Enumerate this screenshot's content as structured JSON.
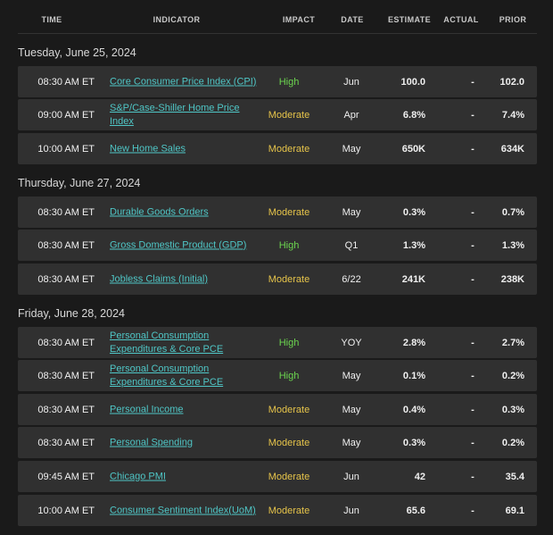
{
  "headers": {
    "time": "TIME",
    "indicator": "INDICATOR",
    "impact": "IMPACT",
    "date": "DATE",
    "estimate": "ESTIMATE",
    "actual": "ACTUAL",
    "prior": "PRIOR"
  },
  "groups": [
    {
      "date_heading": "Tuesday, June 25, 2024",
      "rows": [
        {
          "time": "08:30 AM ET",
          "indicator": "Core Consumer Price Index (CPI)",
          "impact": "High",
          "date": "Jun",
          "estimate": "100.0",
          "actual": "-",
          "prior": "102.0"
        },
        {
          "time": "09:00 AM ET",
          "indicator": "S&P/Case-Shiller Home Price Index",
          "impact": "Moderate",
          "date": "Apr",
          "estimate": "6.8%",
          "actual": "-",
          "prior": "7.4%"
        },
        {
          "time": "10:00 AM ET",
          "indicator": "New Home Sales",
          "impact": "Moderate",
          "date": "May",
          "estimate": "650K",
          "actual": "-",
          "prior": "634K"
        }
      ]
    },
    {
      "date_heading": "Thursday, June 27, 2024",
      "rows": [
        {
          "time": "08:30 AM ET",
          "indicator": "Durable Goods Orders",
          "impact": "Moderate",
          "date": "May",
          "estimate": "0.3%",
          "actual": "-",
          "prior": "0.7%"
        },
        {
          "time": "08:30 AM ET",
          "indicator": "Gross Domestic Product (GDP)",
          "impact": "High",
          "date": "Q1",
          "estimate": "1.3%",
          "actual": "-",
          "prior": "1.3%"
        },
        {
          "time": "08:30 AM ET",
          "indicator": "Jobless Claims (Initial)",
          "impact": "Moderate",
          "date": "6/22",
          "estimate": "241K",
          "actual": "-",
          "prior": "238K"
        }
      ]
    },
    {
      "date_heading": "Friday, June 28, 2024",
      "rows": [
        {
          "time": "08:30 AM ET",
          "indicator": "Personal Consumption Expenditures & Core PCE",
          "impact": "High",
          "date": "YOY",
          "estimate": "2.8%",
          "actual": "-",
          "prior": "2.7%"
        },
        {
          "time": "08:30 AM ET",
          "indicator": "Personal Consumption Expenditures & Core PCE",
          "impact": "High",
          "date": "May",
          "estimate": "0.1%",
          "actual": "-",
          "prior": "0.2%"
        },
        {
          "time": "08:30 AM ET",
          "indicator": "Personal Income",
          "impact": "Moderate",
          "date": "May",
          "estimate": "0.4%",
          "actual": "-",
          "prior": "0.3%"
        },
        {
          "time": "08:30 AM ET",
          "indicator": "Personal Spending",
          "impact": "Moderate",
          "date": "May",
          "estimate": "0.3%",
          "actual": "-",
          "prior": "0.2%"
        },
        {
          "time": "09:45 AM ET",
          "indicator": "Chicago PMI",
          "impact": "Moderate",
          "date": "Jun",
          "estimate": "42",
          "actual": "-",
          "prior": "35.4"
        },
        {
          "time": "10:00 AM ET",
          "indicator": "Consumer Sentiment Index(UoM)",
          "impact": "Moderate",
          "date": "Jun",
          "estimate": "65.6",
          "actual": "-",
          "prior": "69.1"
        }
      ]
    }
  ]
}
